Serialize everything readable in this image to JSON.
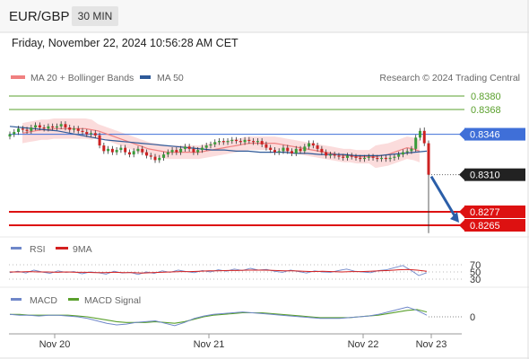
{
  "header": {
    "symbol": "EUR/GBP",
    "timeframe": "30 MIN"
  },
  "datetime": "Friday, November 22, 2024 10:56:28 AM CET",
  "legend": {
    "ma20_bb": "MA 20 + Bollinger Bands",
    "ma50": "MA 50",
    "credit": "Research © 2024 Trading Central",
    "rsi": "RSI",
    "rsi_ma": "9MA",
    "macd": "MACD",
    "macd_signal": "MACD Signal"
  },
  "colors": {
    "up": "#3a9b3a",
    "down": "#cc2222",
    "ma20": "#f08080",
    "band": "#fad6d6",
    "ma50": "#2e5a99",
    "resistance": "#5aa02c",
    "support": "#dd1111",
    "pivot": "#3f6fd8",
    "current": "#222222",
    "arrow": "#2b5ea8",
    "rsi": "#6f87c9",
    "rsi_ma": "#d42020",
    "macd": "#6f87c9",
    "macd_signal": "#5aa02c"
  },
  "levels": [
    {
      "label": "0.8380",
      "value": 0.838,
      "kind": "resistance"
    },
    {
      "label": "0.8368",
      "value": 0.8368,
      "kind": "resistance"
    },
    {
      "label": "0.8346",
      "value": 0.8346,
      "kind": "pivot"
    },
    {
      "label": "0.8310",
      "value": 0.831,
      "kind": "current"
    },
    {
      "label": "0.8277",
      "value": 0.8277,
      "kind": "support"
    },
    {
      "label": "0.8265",
      "value": 0.8265,
      "kind": "support"
    }
  ],
  "x_axis": [
    "Nov 20",
    "Nov 21",
    "Nov 22",
    "Nov 23"
  ],
  "rsi_ticks": [
    "70",
    "50",
    "30"
  ],
  "macd_ticks": [
    "0"
  ],
  "chart_data": {
    "type": "candlestick",
    "symbol": "EUR/GBP",
    "interval": "30 MIN",
    "ylim": [
      0.826,
      0.8392
    ],
    "x_tick_labels": [
      "Nov 20",
      "Nov 21",
      "Nov 22",
      "Nov 23"
    ],
    "close": [
      0.8346,
      0.8348,
      0.8351,
      0.835,
      0.8349,
      0.8352,
      0.8354,
      0.8352,
      0.8351,
      0.8353,
      0.8352,
      0.8353,
      0.8355,
      0.8352,
      0.835,
      0.8351,
      0.8349,
      0.8348,
      0.8346,
      0.8347,
      0.8345,
      0.8336,
      0.8331,
      0.8333,
      0.833,
      0.8332,
      0.8334,
      0.833,
      0.8328,
      0.8331,
      0.8333,
      0.833,
      0.8327,
      0.8326,
      0.8323,
      0.8325,
      0.8328,
      0.833,
      0.8332,
      0.833,
      0.8333,
      0.8335,
      0.8333,
      0.833,
      0.8332,
      0.8334,
      0.8336,
      0.8337,
      0.8339,
      0.834,
      0.8339,
      0.834,
      0.8341,
      0.834,
      0.8339,
      0.8341,
      0.834,
      0.8339,
      0.834,
      0.8337,
      0.8334,
      0.8332,
      0.833,
      0.8331,
      0.8334,
      0.8331,
      0.8329,
      0.8333,
      0.8331,
      0.8335,
      0.8338,
      0.8336,
      0.8333,
      0.833,
      0.8327,
      0.8328,
      0.8327,
      0.8326,
      0.8325,
      0.8327,
      0.8326,
      0.8325,
      0.8324,
      0.8325,
      0.8326,
      0.8325,
      0.8324,
      0.8325,
      0.8324,
      0.8325,
      0.8326,
      0.8328,
      0.833,
      0.8331,
      0.8333,
      0.8343,
      0.8349,
      0.8338,
      0.831
    ],
    "ma20": [
      0.8347,
      0.8348,
      0.8349,
      0.835,
      0.835,
      0.8351,
      0.8351,
      0.8351,
      0.8351,
      0.8351,
      0.8351,
      0.835,
      0.8349,
      0.8347,
      0.8345,
      0.8343,
      0.8341,
      0.8339,
      0.8337,
      0.8335,
      0.8333,
      0.8332,
      0.8331,
      0.833,
      0.833,
      0.833,
      0.833,
      0.833,
      0.833,
      0.8331,
      0.8332,
      0.8333,
      0.8334,
      0.8335,
      0.8336,
      0.8337,
      0.8338,
      0.8338,
      0.8338,
      0.8338,
      0.8338,
      0.8337,
      0.8336,
      0.8335,
      0.8334,
      0.8333,
      0.8332,
      0.8331,
      0.833,
      0.8329,
      0.8328,
      0.8327,
      0.8327,
      0.8326,
      0.8326,
      0.8326,
      0.8326,
      0.8327,
      0.8328,
      0.833,
      0.8332,
      0.8334,
      0.8333,
      0.8331
    ],
    "ma50": [
      0.8353,
      0.8352,
      0.8351,
      0.835,
      0.8349,
      0.8347,
      0.8345,
      0.8343,
      0.8341,
      0.834,
      0.8339,
      0.8338,
      0.8337,
      0.8336,
      0.8335,
      0.8334,
      0.8333,
      0.8332,
      0.8332,
      0.8331,
      0.8331,
      0.833,
      0.833,
      0.833,
      0.8329,
      0.8329,
      0.8328,
      0.8328,
      0.8328,
      0.8327,
      0.8327,
      0.8327,
      0.8328,
      0.8329,
      0.833,
      0.8331
    ],
    "levels": [
      0.838,
      0.8368,
      0.8346,
      0.831,
      0.8277,
      0.8265
    ],
    "forecast_arrow": {
      "from": 0.831,
      "to": 0.8277
    },
    "rsi": {
      "ticks": [
        70,
        50,
        30
      ],
      "values": [
        48,
        52,
        47,
        55,
        50,
        46,
        53,
        49,
        51,
        45,
        50,
        48,
        44,
        52,
        47,
        49,
        43,
        50,
        46,
        53,
        49,
        55,
        51,
        48,
        54,
        50,
        56,
        52,
        58,
        54,
        60,
        55,
        57,
        52,
        49,
        55,
        51,
        47,
        53,
        50,
        49,
        54,
        58,
        52,
        50,
        48,
        54,
        56,
        62,
        68,
        55,
        40,
        48
      ],
      "ma": [
        50,
        50,
        51,
        50,
        50,
        49,
        50,
        49,
        49,
        48,
        48,
        49,
        48,
        48,
        47,
        48,
        49,
        50,
        51,
        51,
        52,
        53,
        53,
        54,
        54,
        55,
        55,
        55,
        54,
        53,
        53,
        52,
        51,
        52,
        51,
        50,
        51,
        51,
        52,
        53,
        54,
        56,
        57,
        55,
        52
      ]
    },
    "macd": {
      "ticks": [
        0
      ],
      "macd": [
        3,
        2,
        2,
        1,
        2,
        2,
        1,
        0,
        -2,
        -5,
        -8,
        -10,
        -9,
        -7,
        -6,
        -5,
        -8,
        -11,
        -7,
        -2,
        1,
        3,
        4,
        5,
        6,
        5,
        4,
        3,
        2,
        1,
        0,
        -1,
        -2,
        -2,
        -2,
        -1,
        0,
        1,
        3,
        6,
        9,
        12,
        8,
        2
      ],
      "signal": [
        3,
        3,
        2,
        2,
        2,
        2,
        2,
        1,
        0,
        -2,
        -4,
        -6,
        -7,
        -7,
        -7,
        -6,
        -7,
        -8,
        -6,
        -3,
        0,
        2,
        3,
        4,
        5,
        5,
        5,
        4,
        3,
        2,
        1,
        0,
        -1,
        -1,
        -1,
        -1,
        0,
        1,
        2,
        4,
        6,
        8,
        9,
        6
      ]
    }
  }
}
